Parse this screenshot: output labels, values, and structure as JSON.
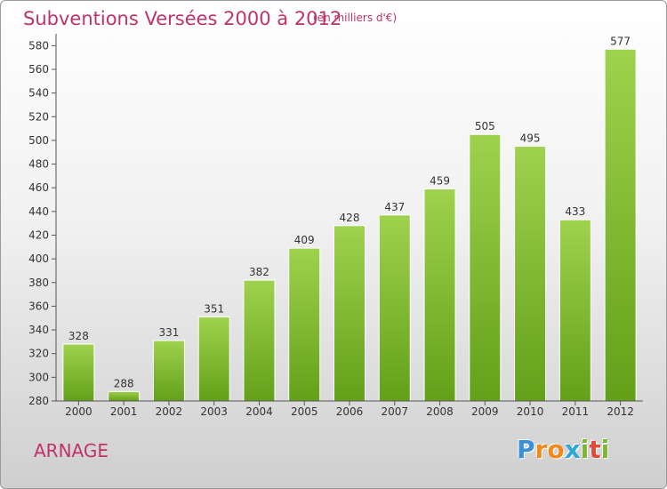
{
  "chart_data": {
    "type": "bar",
    "title": "Subventions Versées 2000 à 2012",
    "subtitle": "(en milliers d'€)",
    "categories": [
      "2000",
      "2001",
      "2002",
      "2003",
      "2004",
      "2005",
      "2006",
      "2007",
      "2008",
      "2009",
      "2010",
      "2011",
      "2012"
    ],
    "values": [
      328,
      288,
      331,
      351,
      382,
      409,
      428,
      437,
      459,
      505,
      495,
      433,
      577
    ],
    "ylim": [
      280,
      590
    ],
    "yticks": [
      280,
      300,
      320,
      340,
      360,
      380,
      400,
      420,
      440,
      460,
      480,
      500,
      520,
      540,
      560,
      580
    ],
    "grid": false,
    "legend": "none",
    "bar_color": "#7cb82f"
  },
  "place": "ARNAGE",
  "brand": {
    "letters": [
      "P",
      "r",
      "o",
      "x",
      "i",
      "t",
      "i"
    ],
    "colors": [
      "#3a8fd6",
      "#f08a1c",
      "#f08a1c",
      "#2fa8d8",
      "#7cb82f",
      "#e04a3a",
      "#7cb82f"
    ]
  }
}
